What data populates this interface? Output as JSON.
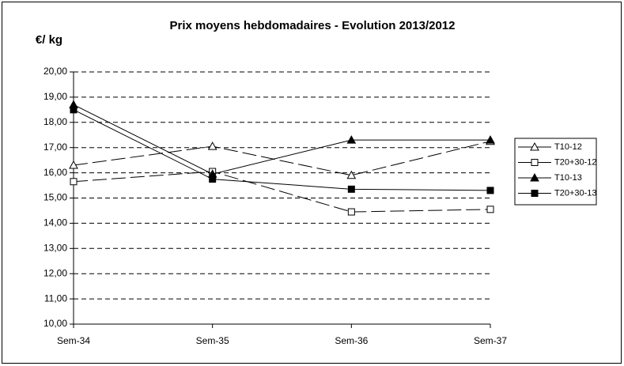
{
  "chart_data": {
    "type": "line",
    "title": "Prix moyens hebdomadaires - Evolution  2013/2012",
    "y_label": "€/ kg",
    "categories": [
      "Sem-34",
      "Sem-35",
      "Sem-36",
      "Sem-37"
    ],
    "series": [
      {
        "name": "T10-12",
        "color": "#000000",
        "marker": "triangle-open",
        "dashed": true,
        "values": [
          16.3,
          17.05,
          15.9,
          17.25
        ]
      },
      {
        "name": "T20+30-12",
        "color": "#000000",
        "marker": "square-open",
        "dashed": true,
        "values": [
          15.65,
          16.05,
          14.45,
          14.55
        ]
      },
      {
        "name": "T10-13",
        "color": "#000000",
        "marker": "triangle-filled",
        "dashed": false,
        "values": [
          18.7,
          15.95,
          17.3,
          17.3
        ]
      },
      {
        "name": "T20+30-13",
        "color": "#000000",
        "marker": "square-filled",
        "dashed": false,
        "values": [
          18.5,
          15.75,
          15.35,
          15.3
        ]
      }
    ],
    "ylim": [
      10,
      20
    ],
    "yticks": [
      {
        "value": 10,
        "label": "10,00"
      },
      {
        "value": 11,
        "label": "11,00"
      },
      {
        "value": 12,
        "label": "12,00"
      },
      {
        "value": 13,
        "label": "13,00"
      },
      {
        "value": 14,
        "label": "14,00"
      },
      {
        "value": 15,
        "label": "15,00"
      },
      {
        "value": 16,
        "label": "16,00"
      },
      {
        "value": 17,
        "label": "17,00"
      },
      {
        "value": 18,
        "label": "18,00"
      },
      {
        "value": 19,
        "label": "19,00"
      },
      {
        "value": 20,
        "label": "20,00"
      }
    ],
    "grid": true,
    "legend": "right"
  }
}
